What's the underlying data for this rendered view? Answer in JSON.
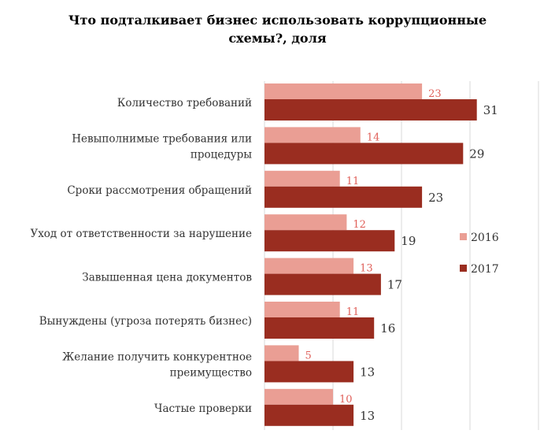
{
  "chart_data": {
    "type": "bar",
    "orientation": "horizontal",
    "title_lines": [
      "Что подталкивает бизнес использовать коррупционные",
      "схемы?, доля"
    ],
    "categories": [
      [
        "Количество требований"
      ],
      [
        "Невыполнимые требования или",
        "процедуры"
      ],
      [
        "Сроки рассмотрения обращений"
      ],
      [
        "Уход от ответственности за нарушение"
      ],
      [
        "Завышенная цена  документов"
      ],
      [
        "Вынуждены (угроза потерять бизнес)"
      ],
      [
        "Желание получить конкурентное",
        "преимущество"
      ],
      [
        "Частые проверки"
      ]
    ],
    "series": [
      {
        "name": "2016",
        "color": "#EA9E94",
        "label_color": "#E0605A",
        "values": [
          23,
          14,
          11,
          12,
          13,
          11,
          5,
          10
        ]
      },
      {
        "name": "2017",
        "color": "#9A2D20",
        "label_color": "#333333",
        "values": [
          31,
          29,
          23,
          19,
          17,
          16,
          13,
          13
        ]
      }
    ],
    "xlim": [
      0,
      40
    ],
    "grid": true,
    "legend": "right"
  }
}
